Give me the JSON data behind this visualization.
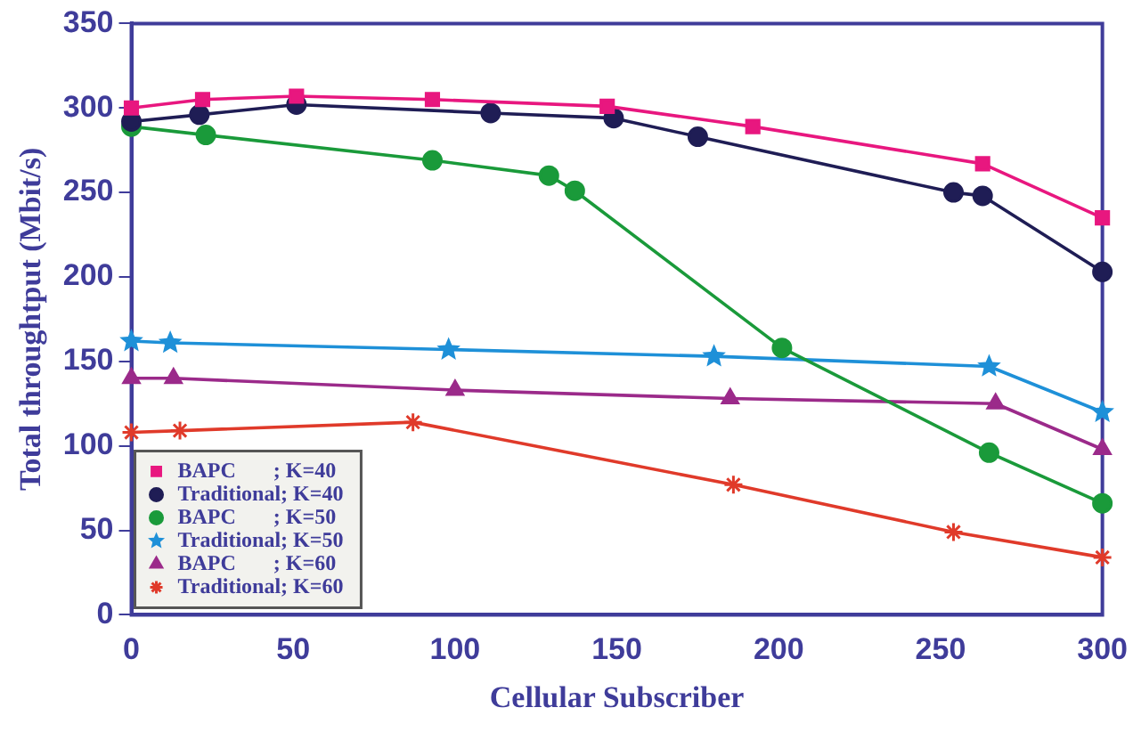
{
  "chart_data": {
    "type": "line",
    "xlabel": "Cellular Subscriber",
    "ylabel": "Total throughtput (Mbit/s)",
    "xlim": [
      0,
      300
    ],
    "xticks": [
      0,
      50,
      100,
      150,
      200,
      250,
      300
    ],
    "ylim": [
      0,
      350
    ],
    "yticks": [
      0,
      50,
      100,
      150,
      200,
      250,
      300,
      350
    ],
    "grid": false,
    "legend": "bottom left",
    "line_style": "solid",
    "series": [
      {
        "name": "BAPC       ; K=40",
        "color": "#e8177f",
        "marker": "square",
        "x": [
          0,
          22,
          51,
          93,
          147,
          192,
          263,
          300
        ],
        "values": [
          300,
          305,
          307,
          305,
          301,
          289,
          267,
          235
        ]
      },
      {
        "name": "Traditional; K=40",
        "color": "#1f1d55",
        "marker": "circle",
        "x": [
          0,
          21,
          51,
          111,
          149,
          175,
          254,
          263,
          300
        ],
        "values": [
          292,
          296,
          302,
          297,
          294,
          283,
          250,
          248,
          203
        ]
      },
      {
        "name": "BAPC       ; K=50",
        "color": "#1a9a3a",
        "marker": "circle",
        "x": [
          0,
          23,
          93,
          129,
          137,
          201,
          265,
          300
        ],
        "values": [
          289,
          284,
          269,
          260,
          251,
          158,
          96,
          66
        ]
      },
      {
        "name": "Traditional; K=50",
        "color": "#1e90d8",
        "marker": "star",
        "x": [
          0,
          12,
          98,
          180,
          265,
          300
        ],
        "values": [
          162,
          161,
          157,
          153,
          147,
          120
        ]
      },
      {
        "name": "BAPC       ; K=60",
        "color": "#9b2a8a",
        "marker": "triangle",
        "x": [
          0,
          13,
          100,
          185,
          267,
          300
        ],
        "values": [
          140,
          140,
          133,
          128,
          125,
          98
        ]
      },
      {
        "name": "Traditional; K=60",
        "color": "#e03a2a",
        "marker": "cross",
        "x": [
          0,
          15,
          87,
          186,
          254,
          300
        ],
        "values": [
          108,
          109,
          114,
          77,
          49,
          34
        ]
      }
    ]
  }
}
